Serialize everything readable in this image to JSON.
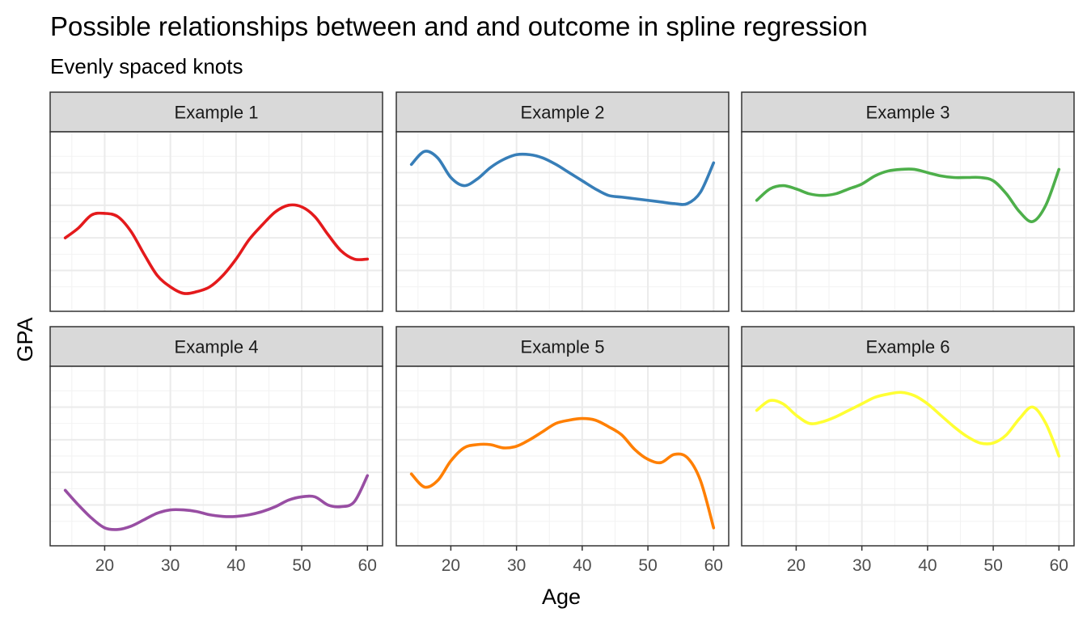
{
  "chart_data": {
    "type": "line",
    "title": "Possible relationships between and and outcome in spline regression",
    "subtitle": "Evenly spaced knots",
    "xlabel": "Age",
    "ylabel": "GPA",
    "xlim": [
      14,
      60
    ],
    "x_ticks": [
      20,
      30,
      40,
      50,
      60
    ],
    "x_tick_labels": [
      "20",
      "30",
      "40",
      "50",
      "60"
    ],
    "y_tick_labels": [],
    "grid": true,
    "legend": "none",
    "facet_layout": {
      "rows": 2,
      "cols": 3
    },
    "panels": [
      {
        "label": "Example 1",
        "color": "#E41A1C",
        "ylim": [
          0.0,
          1.0
        ],
        "x": [
          14,
          16,
          18,
          20,
          22,
          24,
          26,
          28,
          30,
          32,
          34,
          36,
          38,
          40,
          42,
          44,
          46,
          48,
          50,
          52,
          54,
          56,
          58,
          60
        ],
        "y": [
          0.4,
          0.46,
          0.54,
          0.55,
          0.53,
          0.44,
          0.3,
          0.17,
          0.1,
          0.06,
          0.07,
          0.1,
          0.17,
          0.27,
          0.39,
          0.48,
          0.56,
          0.6,
          0.59,
          0.53,
          0.42,
          0.32,
          0.27,
          0.27
        ]
      },
      {
        "label": "Example 2",
        "color": "#377EB8",
        "ylim": [
          0.0,
          1.0
        ],
        "x": [
          14,
          16,
          18,
          20,
          22,
          24,
          26,
          28,
          30,
          32,
          34,
          36,
          38,
          40,
          42,
          44,
          46,
          48,
          50,
          52,
          54,
          56,
          58,
          60
        ],
        "y": [
          0.85,
          0.93,
          0.89,
          0.77,
          0.72,
          0.76,
          0.83,
          0.88,
          0.91,
          0.91,
          0.89,
          0.85,
          0.8,
          0.75,
          0.7,
          0.66,
          0.65,
          0.64,
          0.63,
          0.62,
          0.61,
          0.61,
          0.68,
          0.86
        ]
      },
      {
        "label": "Example 3",
        "color": "#4DAF4A",
        "ylim": [
          0.0,
          1.0
        ],
        "x": [
          14,
          16,
          18,
          20,
          22,
          24,
          26,
          28,
          30,
          32,
          34,
          36,
          38,
          40,
          42,
          44,
          46,
          48,
          50,
          52,
          54,
          56,
          58,
          60
        ],
        "y": [
          0.63,
          0.7,
          0.72,
          0.7,
          0.67,
          0.66,
          0.67,
          0.7,
          0.73,
          0.78,
          0.81,
          0.82,
          0.82,
          0.8,
          0.78,
          0.77,
          0.77,
          0.77,
          0.75,
          0.67,
          0.56,
          0.5,
          0.6,
          0.82
        ]
      },
      {
        "label": "Example 4",
        "color": "#984EA3",
        "ylim": [
          0.0,
          1.0
        ],
        "x": [
          14,
          16,
          18,
          20,
          22,
          24,
          26,
          28,
          30,
          32,
          34,
          36,
          38,
          40,
          42,
          44,
          46,
          48,
          50,
          52,
          54,
          56,
          58,
          60
        ],
        "y": [
          0.29,
          0.2,
          0.12,
          0.06,
          0.05,
          0.07,
          0.11,
          0.15,
          0.17,
          0.17,
          0.16,
          0.14,
          0.13,
          0.13,
          0.14,
          0.16,
          0.19,
          0.23,
          0.25,
          0.25,
          0.2,
          0.19,
          0.22,
          0.38
        ]
      },
      {
        "label": "Example 5",
        "color": "#FF7F00",
        "ylim": [
          0.0,
          1.0
        ],
        "x": [
          14,
          16,
          18,
          20,
          22,
          24,
          26,
          28,
          30,
          32,
          34,
          36,
          38,
          40,
          42,
          44,
          46,
          48,
          50,
          52,
          54,
          56,
          58,
          60
        ],
        "y": [
          0.39,
          0.31,
          0.35,
          0.47,
          0.55,
          0.57,
          0.57,
          0.55,
          0.56,
          0.6,
          0.65,
          0.7,
          0.72,
          0.73,
          0.72,
          0.68,
          0.63,
          0.54,
          0.48,
          0.46,
          0.51,
          0.49,
          0.35,
          0.06
        ]
      },
      {
        "label": "Example 6",
        "color": "#FFFF33",
        "ylim": [
          0.0,
          1.0
        ],
        "x": [
          14,
          16,
          18,
          20,
          22,
          24,
          26,
          28,
          30,
          32,
          34,
          36,
          38,
          40,
          42,
          44,
          46,
          48,
          50,
          52,
          54,
          56,
          58,
          60
        ],
        "y": [
          0.78,
          0.84,
          0.82,
          0.75,
          0.7,
          0.71,
          0.74,
          0.78,
          0.82,
          0.86,
          0.88,
          0.89,
          0.87,
          0.82,
          0.75,
          0.68,
          0.62,
          0.58,
          0.58,
          0.63,
          0.73,
          0.8,
          0.7,
          0.5
        ]
      }
    ]
  }
}
